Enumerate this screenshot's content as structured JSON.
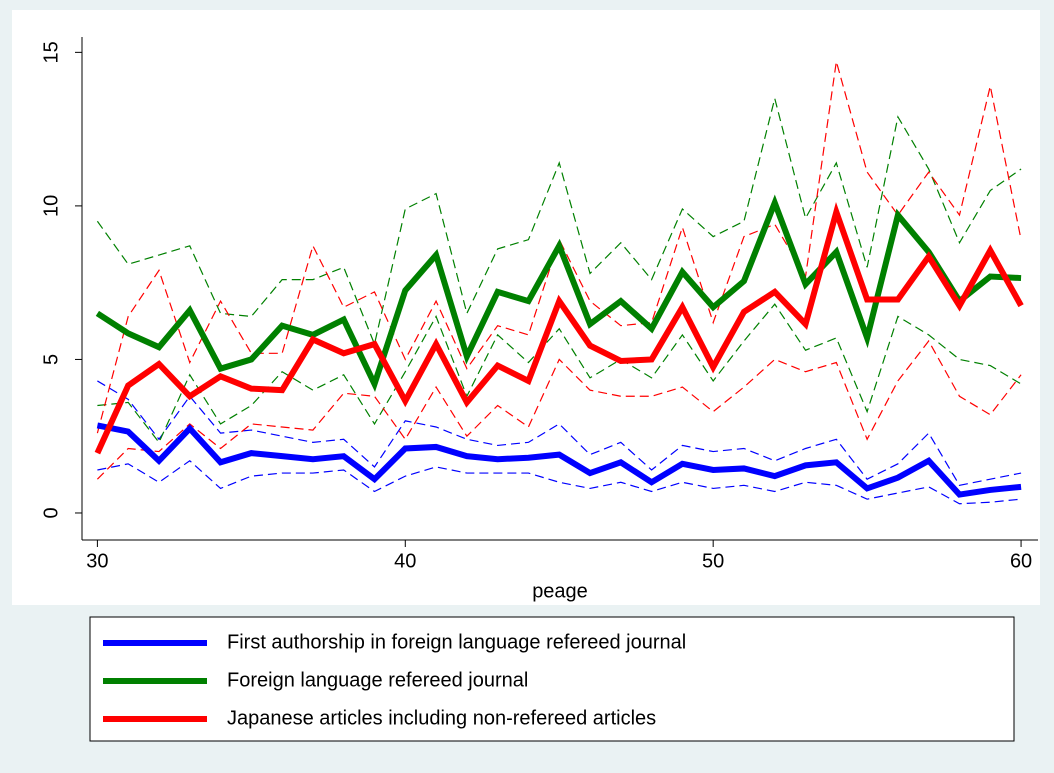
{
  "chart_data": {
    "type": "line",
    "x_label": "peage",
    "x": [
      30,
      31,
      32,
      33,
      34,
      35,
      36,
      37,
      38,
      39,
      40,
      41,
      42,
      43,
      44,
      45,
      46,
      47,
      48,
      49,
      50,
      51,
      52,
      53,
      54,
      55,
      56,
      57,
      58,
      59,
      60
    ],
    "xlim": [
      29.5,
      60.55
    ],
    "xticks": [
      30,
      40,
      50,
      60
    ],
    "ylim": [
      -0.88,
      15.5
    ],
    "yticks": [
      0,
      5,
      10,
      15
    ],
    "series": [
      {
        "name": "First authorship in foreign language refereed journal",
        "color": "#0000ff",
        "values": [
          2.85,
          2.65,
          1.7,
          2.75,
          1.65,
          1.95,
          1.85,
          1.75,
          1.85,
          1.1,
          2.1,
          2.15,
          1.85,
          1.75,
          1.8,
          1.9,
          1.3,
          1.65,
          1.0,
          1.6,
          1.4,
          1.45,
          1.2,
          1.55,
          1.65,
          0.8,
          1.15,
          1.7,
          0.6,
          0.75,
          0.85
        ],
        "upper": [
          4.3,
          3.7,
          2.4,
          3.8,
          2.6,
          2.7,
          2.5,
          2.3,
          2.4,
          1.5,
          3.0,
          2.8,
          2.4,
          2.2,
          2.3,
          2.9,
          1.9,
          2.3,
          1.4,
          2.2,
          2.0,
          2.1,
          1.7,
          2.1,
          2.4,
          1.1,
          1.6,
          2.6,
          0.9,
          1.1,
          1.3
        ],
        "lower": [
          1.4,
          1.6,
          1.0,
          1.7,
          0.8,
          1.2,
          1.3,
          1.3,
          1.4,
          0.7,
          1.2,
          1.5,
          1.3,
          1.3,
          1.3,
          1.0,
          0.8,
          1.0,
          0.7,
          1.0,
          0.8,
          0.9,
          0.7,
          1.0,
          0.9,
          0.45,
          0.65,
          0.85,
          0.3,
          0.35,
          0.45
        ]
      },
      {
        "name": "Foreign language refereed journal",
        "color": "#008000",
        "values": [
          6.5,
          5.85,
          5.4,
          6.6,
          4.7,
          5.0,
          6.1,
          5.8,
          6.3,
          4.2,
          7.25,
          8.4,
          5.1,
          7.2,
          6.9,
          8.7,
          6.15,
          6.9,
          6.0,
          7.85,
          6.7,
          7.55,
          10.1,
          7.45,
          8.5,
          5.7,
          9.7,
          8.5,
          6.9,
          7.7,
          7.65
        ],
        "upper": [
          9.5,
          8.1,
          8.4,
          8.7,
          6.5,
          6.4,
          7.6,
          7.6,
          8.0,
          5.5,
          9.9,
          10.4,
          6.5,
          8.6,
          8.9,
          11.4,
          7.8,
          8.8,
          7.6,
          9.9,
          9.0,
          9.5,
          13.5,
          9.6,
          11.4,
          8.0,
          12.9,
          11.2,
          8.8,
          10.5,
          11.2
        ],
        "lower": [
          3.5,
          3.6,
          2.3,
          4.5,
          2.9,
          3.5,
          4.6,
          4.0,
          4.5,
          2.9,
          4.6,
          6.4,
          3.8,
          5.8,
          4.9,
          6.0,
          4.4,
          5.0,
          4.4,
          5.8,
          4.3,
          5.6,
          6.8,
          5.3,
          5.7,
          3.3,
          6.4,
          5.8,
          5.0,
          4.8,
          4.2
        ]
      },
      {
        "name": "Japanese articles including non-refereed articles",
        "color": "#ff0000",
        "values": [
          1.95,
          4.15,
          4.85,
          3.8,
          4.45,
          4.05,
          4.0,
          5.65,
          5.2,
          5.5,
          3.65,
          5.5,
          3.6,
          4.8,
          4.3,
          6.9,
          5.45,
          4.95,
          5.0,
          6.7,
          4.75,
          6.55,
          7.2,
          6.15,
          9.8,
          6.95,
          6.95,
          8.35,
          6.75,
          8.55,
          6.75
        ],
        "upper": [
          2.6,
          6.4,
          7.9,
          4.9,
          6.9,
          5.2,
          5.2,
          8.7,
          6.7,
          7.2,
          5.0,
          6.9,
          4.7,
          6.1,
          5.8,
          8.9,
          6.9,
          6.1,
          6.2,
          9.3,
          6.2,
          9.0,
          9.4,
          7.7,
          14.7,
          11.1,
          9.7,
          11.1,
          9.7,
          13.9,
          8.9
        ],
        "lower": [
          1.1,
          2.1,
          2.0,
          2.9,
          2.1,
          2.9,
          2.8,
          2.7,
          3.9,
          3.8,
          2.4,
          4.1,
          2.5,
          3.5,
          2.8,
          5.0,
          4.0,
          3.8,
          3.8,
          4.1,
          3.3,
          4.1,
          5.0,
          4.6,
          4.9,
          2.4,
          4.3,
          5.6,
          3.8,
          3.2,
          4.5
        ]
      }
    ]
  }
}
